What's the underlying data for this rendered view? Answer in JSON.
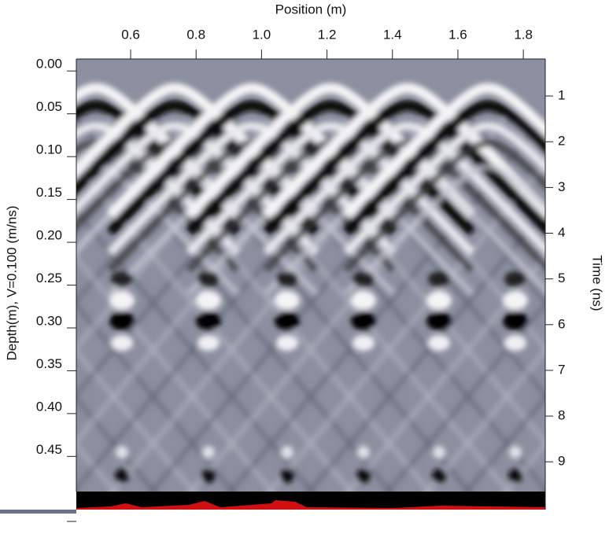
{
  "chart_data": {
    "type": "radargram",
    "xlabel": "Position (m)",
    "ylabel": "Depth(m), V=0.100 (m/ns)",
    "y2label": "Time (ns)",
    "xlim": [
      0.434,
      1.867
    ],
    "xticks": [
      0.6,
      0.8,
      {
        "value": 1,
        "label": "1.0"
      },
      1.2,
      1.4,
      1.6,
      1.8
    ],
    "ylim": [
      -0.014,
      0.491
    ],
    "yticks": [
      {
        "value": 0,
        "label": "0.00"
      },
      0.05,
      {
        "value": 0.1,
        "label": "0.10"
      },
      0.15,
      {
        "value": 0.2,
        "label": "0.20"
      },
      0.25,
      {
        "value": 0.3,
        "label": "0.30"
      },
      0.35,
      {
        "value": 0.4,
        "label": "0.40"
      },
      0.45
    ],
    "y2lim": [
      0.19,
      9.65
    ],
    "y2ticks": [
      1,
      2,
      3,
      4,
      5,
      6,
      7,
      8,
      9
    ]
  }
}
